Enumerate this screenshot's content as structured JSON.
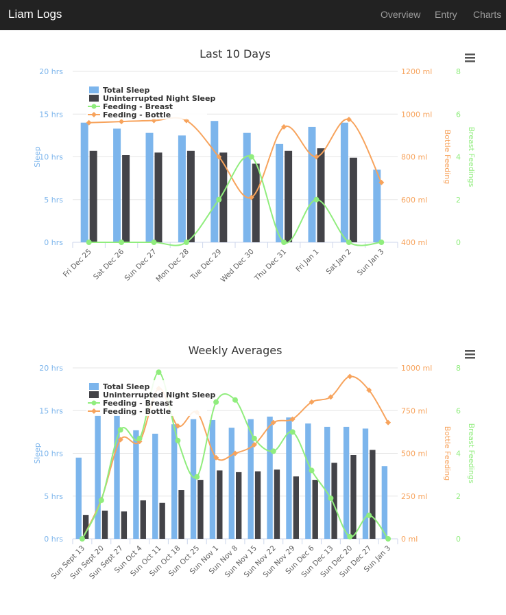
{
  "nav": {
    "brand": "Liam Logs",
    "links": [
      "Overview",
      "Entry",
      "Charts"
    ]
  },
  "colors": {
    "total_sleep": "#7cb5ec",
    "night_sleep": "#434348",
    "breast": "#90ed7d",
    "bottle": "#f7a35c",
    "navbar": "#222222"
  },
  "chart_data": [
    {
      "type": "bar",
      "title": "Last 10 Days",
      "menu_icon": "hamburger-menu-icon",
      "categories": [
        "Fri Dec 25",
        "Sat Dec 26",
        "Sun Dec 27",
        "Mon Dec 28",
        "Tue Dec 29",
        "Wed Dec 30",
        "Thu Dec 31",
        "Fri Jan 1",
        "Sat Jan 2",
        "Sun Jan 3"
      ],
      "axes": {
        "sleep": {
          "title": "Sleep",
          "range": [
            0,
            20
          ],
          "ticks": [
            "0 hrs",
            "5 hrs",
            "10 hrs",
            "15 hrs",
            "20 hrs"
          ]
        },
        "bottle": {
          "title": "Bottle Feeding",
          "range": [
            400,
            1200
          ],
          "ticks": [
            "400 ml",
            "600 ml",
            "800 ml",
            "1000 ml",
            "1200 ml"
          ]
        },
        "breast": {
          "title": "Breast Feedings",
          "range": [
            0,
            8
          ],
          "ticks": [
            "0",
            "2",
            "4",
            "6",
            "8"
          ]
        }
      },
      "legend_position": "top-left",
      "series": [
        {
          "name": "Total Sleep",
          "kind": "column",
          "axis": "sleep",
          "values": [
            14.0,
            13.3,
            12.8,
            12.5,
            14.2,
            12.8,
            11.5,
            13.5,
            14.0,
            8.5
          ]
        },
        {
          "name": "Uninterrupted Night Sleep",
          "kind": "column",
          "axis": "sleep",
          "values": [
            10.7,
            10.2,
            10.5,
            10.7,
            10.5,
            9.2,
            10.7,
            11.0,
            9.9,
            0
          ]
        },
        {
          "name": "Feeding - Breast",
          "kind": "spline",
          "axis": "breast",
          "values": [
            0,
            0,
            0,
            0,
            2,
            4,
            0,
            2,
            0,
            0
          ]
        },
        {
          "name": "Feeding - Bottle",
          "kind": "spline",
          "axis": "bottle",
          "values": [
            960,
            965,
            970,
            970,
            800,
            610,
            940,
            800,
            975,
            680
          ]
        }
      ]
    },
    {
      "type": "bar",
      "title": "Weekly Averages",
      "menu_icon": "hamburger-menu-icon",
      "categories": [
        "Sun Sept 13",
        "Sun Sept 20",
        "Sun Sept 27",
        "Sun Oct 4",
        "Sun Oct 11",
        "Sun Oct 18",
        "Sun Oct 25",
        "Sun Nov 1",
        "Sun Nov 8",
        "Sun Nov 15",
        "Sun Nov 22",
        "Sun Nov 29",
        "Sun Dec 6",
        "Sun Dec 13",
        "Sun Dec 20",
        "Sun Dec 27",
        "Sun Jan 3"
      ],
      "axes": {
        "sleep": {
          "title": "Sleep",
          "range": [
            0,
            20
          ],
          "ticks": [
            "0 hrs",
            "5 hrs",
            "10 hrs",
            "15 hrs",
            "20 hrs"
          ]
        },
        "bottle": {
          "title": "Bottle Feeding",
          "range": [
            0,
            1000
          ],
          "ticks": [
            "0 ml",
            "250 ml",
            "500 ml",
            "750 ml",
            "1000 ml"
          ]
        },
        "breast": {
          "title": "Breast Feedings",
          "range": [
            0,
            8
          ],
          "ticks": [
            "0",
            "2",
            "4",
            "6",
            "8"
          ]
        }
      },
      "legend_position": "top-left",
      "series": [
        {
          "name": "Total Sleep",
          "kind": "column",
          "axis": "sleep",
          "values": [
            9.5,
            14.5,
            14.5,
            12.7,
            12.3,
            13.4,
            14.0,
            13.9,
            13.0,
            14.0,
            14.3,
            14.2,
            13.5,
            13.1,
            13.1,
            12.9,
            8.5
          ]
        },
        {
          "name": "Uninterrupted Night Sleep",
          "kind": "column",
          "axis": "sleep",
          "values": [
            2.8,
            3.3,
            3.2,
            4.5,
            4.2,
            5.7,
            6.9,
            8.0,
            7.8,
            7.9,
            8.1,
            7.3,
            6.9,
            8.9,
            9.8,
            10.4,
            0
          ]
        },
        {
          "name": "Feeding - Breast",
          "kind": "spline",
          "axis": "breast",
          "values": [
            0,
            1.8,
            5.1,
            4.7,
            7.8,
            4.6,
            2.9,
            6.4,
            6.5,
            4.7,
            4.1,
            5.0,
            3.2,
            1.9,
            0.1,
            1.1,
            0
          ]
        },
        {
          "name": "Feeding - Bottle",
          "kind": "spline",
          "axis": "bottle",
          "values": [
            0,
            230,
            580,
            570,
            880,
            660,
            740,
            475,
            500,
            550,
            680,
            700,
            800,
            830,
            950,
            870,
            680
          ]
        }
      ]
    }
  ]
}
